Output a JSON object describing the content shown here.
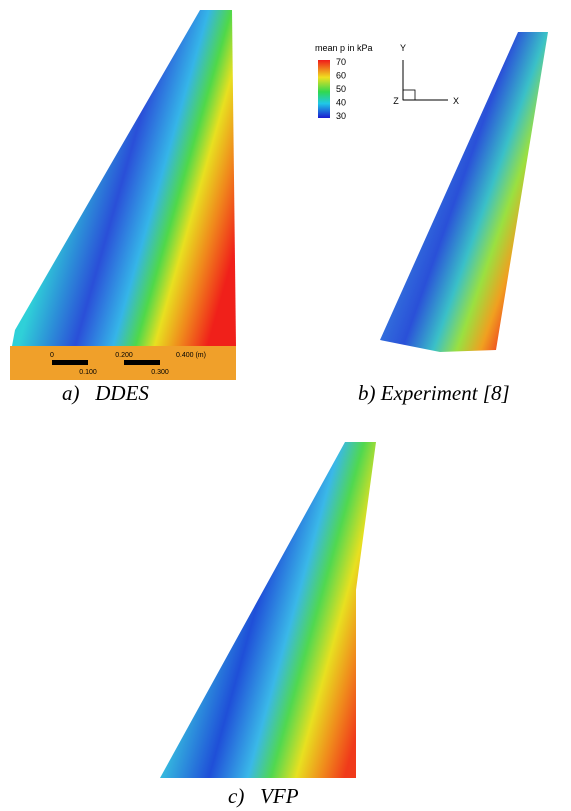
{
  "figure": {
    "panels": [
      {
        "caption": "a)   DDES",
        "scale_bar": {
          "top_labels": [
            "0",
            "0.200",
            "0.400 (m)"
          ],
          "bottom_labels": [
            "0.100",
            "0.300"
          ]
        }
      },
      {
        "caption": "b) Experiment [8]",
        "legend": {
          "title": "mean p in kPa",
          "ticks": [
            70,
            60,
            50,
            40,
            30
          ]
        },
        "axes": {
          "y": "Y",
          "z": "Z",
          "x": "X"
        }
      },
      {
        "caption": "c)   VFP"
      }
    ]
  }
}
